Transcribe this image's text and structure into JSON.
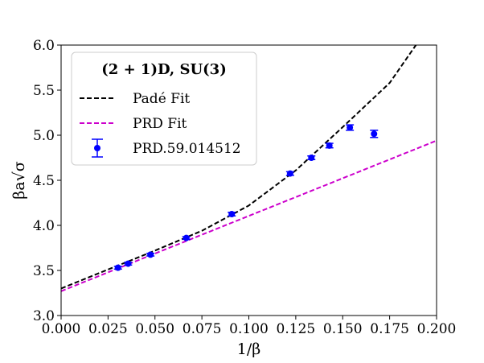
{
  "chart_data": {
    "type": "line",
    "title": "",
    "xlabel": "1/β",
    "ylabel": "βa√σ",
    "xlim": [
      0.0,
      0.2
    ],
    "ylim": [
      3.0,
      6.0
    ],
    "xticks": [
      "0.000",
      "0.025",
      "0.050",
      "0.075",
      "0.100",
      "0.125",
      "0.150",
      "0.175",
      "0.200"
    ],
    "yticks": [
      "3.0",
      "3.5",
      "4.0",
      "4.5",
      "5.0",
      "5.5",
      "6.0"
    ],
    "grid": false,
    "legend": {
      "placement": "top-left",
      "title": "(2 + 1)D, SU(3)"
    },
    "series": [
      {
        "name": "Padé Fit",
        "style": "dashed",
        "color": "#000000",
        "points": [
          [
            0.0,
            3.3
          ],
          [
            0.025,
            3.51
          ],
          [
            0.05,
            3.72
          ],
          [
            0.075,
            3.94
          ],
          [
            0.1,
            4.22
          ],
          [
            0.125,
            4.61
          ],
          [
            0.15,
            5.09
          ],
          [
            0.175,
            5.58
          ],
          [
            0.189,
            6.0
          ]
        ]
      },
      {
        "name": "PRD Fit",
        "style": "dashed",
        "color": "#cc00cc",
        "points": [
          [
            0.0,
            3.27
          ],
          [
            0.2,
            4.94
          ]
        ]
      },
      {
        "name": "PRD.59.014512",
        "style": "errorbar",
        "color": "#0000ff",
        "x": [
          0.0303,
          0.0357,
          0.0476,
          0.0667,
          0.0909,
          0.122,
          0.1333,
          0.1429,
          0.1538,
          0.1667
        ],
        "y": [
          3.53,
          3.575,
          3.675,
          3.86,
          4.125,
          4.575,
          4.75,
          4.885,
          5.085,
          5.015
        ],
        "yerr": [
          0.015,
          0.015,
          0.015,
          0.015,
          0.02,
          0.02,
          0.02,
          0.025,
          0.03,
          0.04
        ]
      }
    ]
  }
}
